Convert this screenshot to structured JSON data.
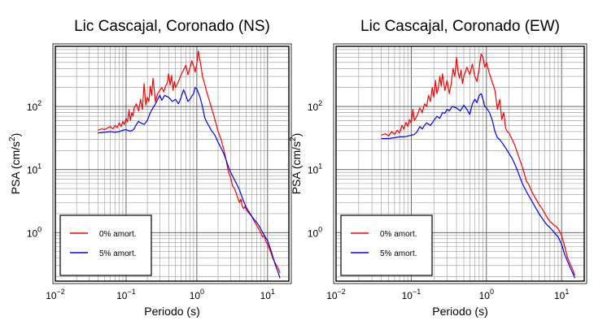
{
  "chart_data": [
    {
      "type": "line",
      "title": "Lic Cascajal, Coronado (NS)",
      "xlabel": "Periodo (s)",
      "ylabel": "PSA (cm/s²)",
      "ylabel_text": "PSA (cm/s",
      "ylabel_sup": "2",
      "ylabel_close": ")",
      "x_scale": "log",
      "y_scale": "log",
      "xlim": [
        0.01,
        20
      ],
      "ylim": [
        0.17,
        900
      ],
      "x_ticks": [
        {
          "value": 0.01,
          "base": "10",
          "exp": "−2"
        },
        {
          "value": 0.1,
          "base": "10",
          "exp": "−1"
        },
        {
          "value": 1,
          "base": "10",
          "exp": "0"
        },
        {
          "value": 10,
          "base": "10",
          "exp": "1"
        }
      ],
      "y_ticks": [
        {
          "value": 1,
          "base": "10",
          "exp": "0"
        },
        {
          "value": 10,
          "base": "10",
          "exp": "1"
        },
        {
          "value": 100,
          "base": "10",
          "exp": "2"
        }
      ],
      "grid": true,
      "legend_position": "bottom-left",
      "series": [
        {
          "name": "0% amort.",
          "color": "#ff0000",
          "x": [
            0.04,
            0.045,
            0.05,
            0.055,
            0.06,
            0.065,
            0.07,
            0.075,
            0.08,
            0.085,
            0.09,
            0.095,
            0.1,
            0.105,
            0.11,
            0.115,
            0.12,
            0.125,
            0.13,
            0.14,
            0.15,
            0.16,
            0.17,
            0.18,
            0.19,
            0.2,
            0.21,
            0.22,
            0.23,
            0.24,
            0.25,
            0.26,
            0.28,
            0.3,
            0.32,
            0.34,
            0.36,
            0.38,
            0.4,
            0.42,
            0.44,
            0.46,
            0.48,
            0.5,
            0.55,
            0.6,
            0.65,
            0.7,
            0.75,
            0.8,
            0.85,
            0.9,
            0.95,
            1.0,
            1.05,
            1.1,
            1.15,
            1.2,
            1.3,
            1.4,
            1.5,
            1.6,
            1.7,
            1.8,
            1.9,
            2.0,
            2.2,
            2.4,
            2.6,
            2.8,
            3.0,
            3.2,
            3.4,
            3.6,
            3.8,
            4.0,
            4.2,
            4.4,
            4.6,
            4.8,
            5.0,
            5.5,
            6.0,
            6.5,
            7.0,
            7.5,
            8.0,
            8.5,
            9.0,
            9.5,
            10.0,
            11.0,
            12.0,
            13.0,
            14.0,
            15.0
          ],
          "values": [
            42,
            44,
            43,
            46,
            48,
            44,
            50,
            46,
            55,
            48,
            58,
            52,
            65,
            57,
            88,
            60,
            80,
            70,
            95,
            110,
            85,
            130,
            90,
            230,
            105,
            140,
            120,
            210,
            150,
            280,
            190,
            120,
            160,
            180,
            200,
            170,
            210,
            230,
            330,
            220,
            310,
            180,
            250,
            200,
            250,
            320,
            380,
            450,
            320,
            410,
            530,
            440,
            350,
            480,
            760,
            560,
            420,
            300,
            220,
            160,
            125,
            98,
            78,
            62,
            50,
            40,
            30,
            21,
            14,
            9,
            7.5,
            5.5,
            5.0,
            4.2,
            3.5,
            3.0,
            3.4,
            2.6,
            2.4,
            2.6,
            2.3,
            2.0,
            1.8,
            1.5,
            1.3,
            1.15,
            1.0,
            0.85,
            0.9,
            0.72,
            0.65,
            0.5,
            0.38,
            0.32,
            0.28,
            0.23
          ]
        },
        {
          "name": "5% amort.",
          "color": "#0000ff",
          "x": [
            0.04,
            0.05,
            0.06,
            0.07,
            0.08,
            0.09,
            0.1,
            0.11,
            0.12,
            0.13,
            0.14,
            0.15,
            0.16,
            0.18,
            0.2,
            0.22,
            0.24,
            0.26,
            0.28,
            0.3,
            0.32,
            0.35,
            0.4,
            0.45,
            0.5,
            0.55,
            0.6,
            0.65,
            0.7,
            0.75,
            0.8,
            0.85,
            0.9,
            0.95,
            1.0,
            1.1,
            1.2,
            1.3,
            1.4,
            1.5,
            1.6,
            1.8,
            2.0,
            2.2,
            2.4,
            2.6,
            2.8,
            3.0,
            3.5,
            4.0,
            4.5,
            5.0,
            5.5,
            6.0,
            6.5,
            7.0,
            7.5,
            8.0,
            9.0,
            10.0,
            11.0,
            12.0,
            13.0,
            14.0,
            15.0
          ],
          "values": [
            38,
            39,
            40,
            39,
            40,
            42,
            43,
            41,
            41,
            44,
            52,
            58,
            55,
            52,
            60,
            80,
            95,
            110,
            130,
            150,
            125,
            150,
            140,
            120,
            130,
            110,
            140,
            185,
            150,
            120,
            130,
            145,
            160,
            200,
            190,
            145,
            100,
            65,
            55,
            48,
            42,
            35,
            27,
            22,
            18,
            14,
            11,
            9,
            6.5,
            4.8,
            3.3,
            2.5,
            2.1,
            1.8,
            1.6,
            1.45,
            1.3,
            1.15,
            0.9,
            0.75,
            0.55,
            0.4,
            0.3,
            0.24,
            0.19
          ]
        }
      ]
    },
    {
      "type": "line",
      "title": "Lic Cascajal, Coronado (EW)",
      "xlabel": "Periodo (s)",
      "ylabel": "PSA (cm/s²)",
      "ylabel_text": "PSA (cm/s",
      "ylabel_sup": "2",
      "ylabel_close": ")",
      "x_scale": "log",
      "y_scale": "log",
      "xlim": [
        0.01,
        20
      ],
      "ylim": [
        0.17,
        900
      ],
      "x_ticks": [
        {
          "value": 0.01,
          "base": "10",
          "exp": "−2"
        },
        {
          "value": 0.1,
          "base": "10",
          "exp": "−1"
        },
        {
          "value": 1,
          "base": "10",
          "exp": "0"
        },
        {
          "value": 10,
          "base": "10",
          "exp": "1"
        }
      ],
      "y_ticks": [
        {
          "value": 1,
          "base": "10",
          "exp": "0"
        },
        {
          "value": 10,
          "base": "10",
          "exp": "1"
        },
        {
          "value": 100,
          "base": "10",
          "exp": "2"
        }
      ],
      "grid": true,
      "legend_position": "bottom-left",
      "series": [
        {
          "name": "0% amort.",
          "color": "#ff0000",
          "x": [
            0.04,
            0.045,
            0.05,
            0.055,
            0.06,
            0.065,
            0.07,
            0.075,
            0.08,
            0.085,
            0.09,
            0.095,
            0.1,
            0.105,
            0.11,
            0.12,
            0.13,
            0.14,
            0.15,
            0.16,
            0.17,
            0.18,
            0.19,
            0.2,
            0.21,
            0.22,
            0.23,
            0.24,
            0.25,
            0.26,
            0.28,
            0.3,
            0.32,
            0.34,
            0.36,
            0.38,
            0.4,
            0.42,
            0.44,
            0.46,
            0.48,
            0.5,
            0.55,
            0.6,
            0.65,
            0.7,
            0.75,
            0.8,
            0.85,
            0.9,
            0.95,
            1.0,
            1.1,
            1.2,
            1.3,
            1.4,
            1.5,
            1.6,
            1.7,
            1.8,
            1.9,
            2.0,
            2.2,
            2.4,
            2.6,
            2.8,
            3.0,
            3.2,
            3.4,
            3.6,
            3.8,
            4.0,
            4.5,
            5.0,
            5.5,
            6.0,
            6.5,
            7.0,
            7.5,
            8.0,
            8.5,
            9.0,
            10.0,
            11.0,
            12.0,
            13.0,
            14.0,
            15.0
          ],
          "values": [
            35,
            37,
            34,
            40,
            36,
            42,
            38,
            50,
            44,
            56,
            48,
            62,
            55,
            90,
            60,
            72,
            95,
            80,
            110,
            100,
            150,
            120,
            200,
            140,
            260,
            160,
            200,
            300,
            210,
            330,
            180,
            260,
            160,
            230,
            400,
            300,
            600,
            350,
            280,
            380,
            230,
            300,
            420,
            320,
            470,
            300,
            250,
            400,
            680,
            600,
            420,
            500,
            330,
            240,
            180,
            90,
            130,
            62,
            80,
            45,
            40,
            38,
            30,
            24,
            18,
            14,
            11,
            8.5,
            6.5,
            6.0,
            5.2,
            4.5,
            3.5,
            2.8,
            2.4,
            2.0,
            1.7,
            1.5,
            1.4,
            1.3,
            1.25,
            1.15,
            0.9,
            0.6,
            0.4,
            0.32,
            0.26,
            0.21
          ]
        },
        {
          "name": "5% amort.",
          "color": "#0000ff",
          "x": [
            0.04,
            0.05,
            0.06,
            0.07,
            0.08,
            0.09,
            0.1,
            0.11,
            0.12,
            0.13,
            0.14,
            0.15,
            0.16,
            0.18,
            0.2,
            0.22,
            0.24,
            0.26,
            0.28,
            0.3,
            0.32,
            0.35,
            0.4,
            0.45,
            0.5,
            0.55,
            0.6,
            0.65,
            0.7,
            0.75,
            0.8,
            0.85,
            0.9,
            0.95,
            1.0,
            1.1,
            1.2,
            1.3,
            1.4,
            1.5,
            1.6,
            1.8,
            2.0,
            2.2,
            2.4,
            2.6,
            2.8,
            3.0,
            3.5,
            4.0,
            4.5,
            5.0,
            5.5,
            6.0,
            6.5,
            7.0,
            7.5,
            8.0,
            9.0,
            10.0,
            11.0,
            12.0,
            13.0,
            14.0,
            15.0
          ],
          "values": [
            31,
            31,
            32,
            33,
            33,
            34,
            35,
            36,
            40,
            48,
            44,
            50,
            55,
            50,
            60,
            70,
            65,
            80,
            78,
            90,
            85,
            100,
            95,
            85,
            105,
            90,
            75,
            110,
            130,
            115,
            150,
            160,
            130,
            100,
            95,
            80,
            60,
            40,
            32,
            30,
            27,
            22,
            18,
            15,
            12,
            9.5,
            7.5,
            6.0,
            4.2,
            3.2,
            2.5,
            2.0,
            1.7,
            1.45,
            1.3,
            1.2,
            1.1,
            1.0,
            0.85,
            0.65,
            0.45,
            0.35,
            0.28,
            0.23,
            0.19
          ]
        }
      ]
    }
  ]
}
